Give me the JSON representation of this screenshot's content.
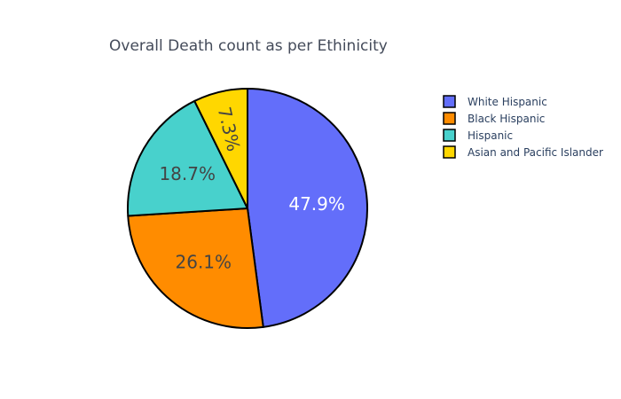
{
  "chart_data": {
    "type": "pie",
    "title": "Overall Death count as per Ethinicity",
    "categories": [
      "White Hispanic",
      "Black Hispanic",
      "Hispanic",
      "Asian and Pacific Islander"
    ],
    "values": [
      47.9,
      26.1,
      18.7,
      7.3
    ],
    "value_labels": [
      "47.9%",
      "26.1%",
      "18.7%",
      "7.3%"
    ],
    "colors": [
      "#636efa",
      "#ff8c00",
      "#48d1cc",
      "#ffd700"
    ],
    "label_colors": [
      "#ffffff",
      "#444444",
      "#444444",
      "#444444"
    ],
    "legend_order": [
      0,
      1,
      2,
      3
    ],
    "legend_placement": "top-right",
    "direction": "clockwise",
    "start": "top"
  }
}
